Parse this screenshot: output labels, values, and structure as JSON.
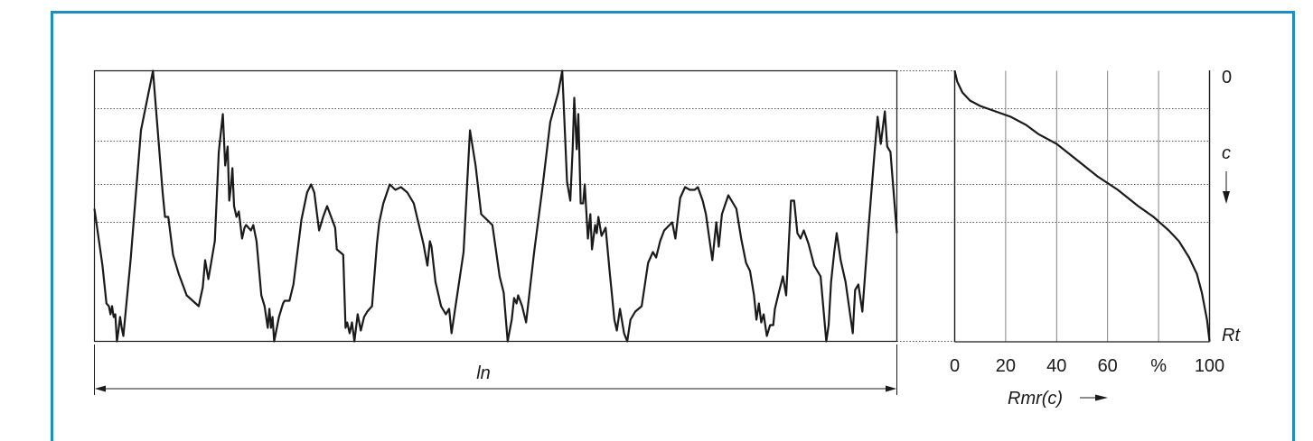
{
  "colors": {
    "border": "#1f8cc4",
    "curve": "#1a1a1a",
    "grid": "#666666"
  },
  "profile": {
    "length_label": "ln",
    "profile_points": [
      [
        0.0,
        0.49
      ],
      [
        0.01,
        0.28
      ],
      [
        0.015,
        0.14
      ],
      [
        0.018,
        0.13
      ],
      [
        0.02,
        0.1
      ],
      [
        0.022,
        0.13
      ],
      [
        0.024,
        0.09
      ],
      [
        0.026,
        0.1
      ],
      [
        0.028,
        0.0
      ],
      [
        0.03,
        0.04
      ],
      [
        0.032,
        0.09
      ],
      [
        0.034,
        0.05
      ],
      [
        0.036,
        0.02
      ],
      [
        0.045,
        0.3
      ],
      [
        0.058,
        0.78
      ],
      [
        0.073,
        1.0
      ],
      [
        0.085,
        0.55
      ],
      [
        0.088,
        0.46
      ],
      [
        0.092,
        0.46
      ],
      [
        0.098,
        0.32
      ],
      [
        0.105,
        0.25
      ],
      [
        0.115,
        0.17
      ],
      [
        0.13,
        0.13
      ],
      [
        0.135,
        0.2
      ],
      [
        0.138,
        0.3
      ],
      [
        0.142,
        0.23
      ],
      [
        0.15,
        0.37
      ],
      [
        0.155,
        0.7
      ],
      [
        0.16,
        0.84
      ],
      [
        0.163,
        0.65
      ],
      [
        0.166,
        0.72
      ],
      [
        0.168,
        0.52
      ],
      [
        0.17,
        0.57
      ],
      [
        0.172,
        0.64
      ],
      [
        0.174,
        0.5
      ],
      [
        0.177,
        0.46
      ],
      [
        0.18,
        0.48
      ],
      [
        0.184,
        0.38
      ],
      [
        0.187,
        0.42
      ],
      [
        0.189,
        0.43
      ],
      [
        0.195,
        0.41
      ],
      [
        0.198,
        0.43
      ],
      [
        0.202,
        0.37
      ],
      [
        0.208,
        0.17
      ],
      [
        0.212,
        0.13
      ],
      [
        0.216,
        0.05
      ],
      [
        0.218,
        0.12
      ],
      [
        0.22,
        0.05
      ],
      [
        0.222,
        0.09
      ],
      [
        0.224,
        0.0
      ],
      [
        0.23,
        0.09
      ],
      [
        0.235,
        0.14
      ],
      [
        0.237,
        0.15
      ],
      [
        0.243,
        0.15
      ],
      [
        0.248,
        0.21
      ],
      [
        0.258,
        0.45
      ],
      [
        0.265,
        0.55
      ],
      [
        0.27,
        0.58
      ],
      [
        0.274,
        0.55
      ],
      [
        0.28,
        0.41
      ],
      [
        0.285,
        0.46
      ],
      [
        0.29,
        0.5
      ],
      [
        0.3,
        0.42
      ],
      [
        0.302,
        0.34
      ],
      [
        0.31,
        0.32
      ],
      [
        0.313,
        0.05
      ],
      [
        0.315,
        0.07
      ],
      [
        0.318,
        0.03
      ],
      [
        0.321,
        0.07
      ],
      [
        0.324,
        0.0
      ],
      [
        0.328,
        0.1
      ],
      [
        0.332,
        0.04
      ],
      [
        0.336,
        0.09
      ],
      [
        0.34,
        0.11
      ],
      [
        0.346,
        0.13
      ],
      [
        0.352,
        0.36
      ],
      [
        0.355,
        0.44
      ],
      [
        0.36,
        0.51
      ],
      [
        0.368,
        0.58
      ],
      [
        0.375,
        0.56
      ],
      [
        0.382,
        0.57
      ],
      [
        0.39,
        0.55
      ],
      [
        0.398,
        0.51
      ],
      [
        0.41,
        0.36
      ],
      [
        0.415,
        0.28
      ],
      [
        0.418,
        0.37
      ],
      [
        0.42,
        0.35
      ],
      [
        0.425,
        0.22
      ],
      [
        0.432,
        0.13
      ],
      [
        0.438,
        0.1
      ],
      [
        0.442,
        0.12
      ],
      [
        0.445,
        0.03
      ],
      [
        0.45,
        0.13
      ],
      [
        0.46,
        0.33
      ],
      [
        0.468,
        0.78
      ],
      [
        0.475,
        0.65
      ],
      [
        0.482,
        0.47
      ],
      [
        0.496,
        0.43
      ],
      [
        0.505,
        0.24
      ],
      [
        0.51,
        0.18
      ],
      [
        0.515,
        0.0
      ],
      [
        0.52,
        0.08
      ],
      [
        0.523,
        0.16
      ],
      [
        0.526,
        0.14
      ],
      [
        0.528,
        0.17
      ],
      [
        0.533,
        0.13
      ],
      [
        0.538,
        0.07
      ],
      [
        0.548,
        0.33
      ],
      [
        0.558,
        0.56
      ],
      [
        0.568,
        0.81
      ],
      [
        0.578,
        0.92
      ],
      [
        0.583,
        1.0
      ],
      [
        0.589,
        0.59
      ],
      [
        0.593,
        0.52
      ],
      [
        0.596,
        0.71
      ],
      [
        0.598,
        0.9
      ],
      [
        0.601,
        0.71
      ],
      [
        0.603,
        0.84
      ],
      [
        0.606,
        0.51
      ],
      [
        0.609,
        0.51
      ],
      [
        0.611,
        0.58
      ],
      [
        0.615,
        0.38
      ],
      [
        0.618,
        0.47
      ],
      [
        0.62,
        0.34
      ],
      [
        0.624,
        0.43
      ],
      [
        0.626,
        0.4
      ],
      [
        0.628,
        0.46
      ],
      [
        0.632,
        0.39
      ],
      [
        0.637,
        0.42
      ],
      [
        0.642,
        0.26
      ],
      [
        0.648,
        0.08
      ],
      [
        0.651,
        0.04
      ],
      [
        0.655,
        0.12
      ],
      [
        0.66,
        0.03
      ],
      [
        0.664,
        0.0
      ],
      [
        0.668,
        0.08
      ],
      [
        0.674,
        0.11
      ],
      [
        0.682,
        0.13
      ],
      [
        0.69,
        0.29
      ],
      [
        0.696,
        0.33
      ],
      [
        0.7,
        0.31
      ],
      [
        0.705,
        0.37
      ],
      [
        0.71,
        0.41
      ],
      [
        0.72,
        0.44
      ],
      [
        0.724,
        0.38
      ],
      [
        0.73,
        0.53
      ],
      [
        0.736,
        0.57
      ],
      [
        0.742,
        0.56
      ],
      [
        0.748,
        0.56
      ],
      [
        0.752,
        0.57
      ],
      [
        0.758,
        0.52
      ],
      [
        0.762,
        0.47
      ],
      [
        0.77,
        0.3
      ],
      [
        0.775,
        0.44
      ],
      [
        0.778,
        0.35
      ],
      [
        0.782,
        0.47
      ],
      [
        0.79,
        0.54
      ],
      [
        0.8,
        0.49
      ],
      [
        0.806,
        0.38
      ],
      [
        0.812,
        0.29
      ],
      [
        0.817,
        0.26
      ],
      [
        0.822,
        0.17
      ],
      [
        0.825,
        0.08
      ],
      [
        0.828,
        0.14
      ],
      [
        0.831,
        0.07
      ],
      [
        0.834,
        0.1
      ],
      [
        0.838,
        0.02
      ],
      [
        0.842,
        0.06
      ],
      [
        0.846,
        0.06
      ],
      [
        0.848,
        0.12
      ],
      [
        0.852,
        0.17
      ],
      [
        0.858,
        0.24
      ],
      [
        0.862,
        0.17
      ],
      [
        0.868,
        0.52
      ],
      [
        0.872,
        0.52
      ],
      [
        0.876,
        0.4
      ],
      [
        0.88,
        0.38
      ],
      [
        0.884,
        0.41
      ],
      [
        0.89,
        0.36
      ],
      [
        0.897,
        0.28
      ],
      [
        0.905,
        0.24
      ],
      [
        0.912,
        0.0
      ],
      [
        0.915,
        0.06
      ],
      [
        0.918,
        0.22
      ],
      [
        0.922,
        0.33
      ],
      [
        0.925,
        0.4
      ],
      [
        0.93,
        0.3
      ],
      [
        0.936,
        0.22
      ],
      [
        0.945,
        0.03
      ],
      [
        0.948,
        0.19
      ],
      [
        0.952,
        0.21
      ],
      [
        0.957,
        0.11
      ],
      [
        0.965,
        0.43
      ],
      [
        0.972,
        0.69
      ],
      [
        0.976,
        0.83
      ],
      [
        0.98,
        0.73
      ],
      [
        0.985,
        0.85
      ],
      [
        0.988,
        0.72
      ],
      [
        0.992,
        0.7
      ],
      [
        1.0,
        0.4
      ]
    ],
    "dotted_levels": [
      0.14,
      0.26,
      0.42,
      0.56
    ]
  },
  "bearing_curve": {
    "x_axis_label": "Rmr(c)",
    "x_tick_labels": [
      "0",
      "20",
      "40",
      "60",
      "%",
      "100"
    ],
    "x_tick_values": [
      0,
      20,
      40,
      60,
      80,
      100
    ],
    "y_top_label": "0",
    "y_axis_label": "c",
    "y_bottom_label": "Rt",
    "curve_points": [
      [
        0,
        0.0
      ],
      [
        1,
        0.04
      ],
      [
        3,
        0.08
      ],
      [
        6,
        0.11
      ],
      [
        10,
        0.13
      ],
      [
        16,
        0.15
      ],
      [
        22,
        0.17
      ],
      [
        28,
        0.2
      ],
      [
        33,
        0.235
      ],
      [
        40,
        0.27
      ],
      [
        48,
        0.33
      ],
      [
        56,
        0.39
      ],
      [
        64,
        0.44
      ],
      [
        72,
        0.5
      ],
      [
        78,
        0.54
      ],
      [
        84,
        0.59
      ],
      [
        88,
        0.63
      ],
      [
        92,
        0.69
      ],
      [
        95,
        0.75
      ],
      [
        97,
        0.82
      ],
      [
        99,
        0.92
      ],
      [
        100,
        1.0
      ]
    ]
  }
}
